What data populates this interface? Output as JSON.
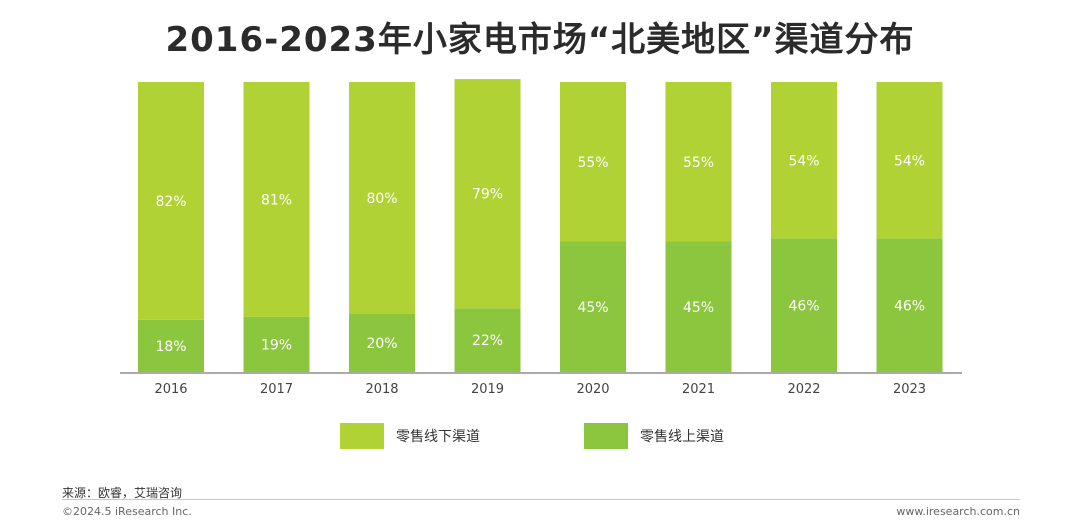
{
  "title": "2016-2023年小家电市场“北美地区”渠道分布",
  "chart_data": {
    "type": "bar",
    "stacked": true,
    "categories": [
      "2016",
      "2017",
      "2018",
      "2019",
      "2020",
      "2021",
      "2022",
      "2023"
    ],
    "series": [
      {
        "name": "零售线上渠道",
        "values": [
          18,
          19,
          20,
          22,
          45,
          45,
          46,
          46
        ],
        "labels": [
          "18%",
          "19%",
          "20%",
          "22%",
          "45%",
          "45%",
          "46%",
          "46%"
        ],
        "color": "#8cc63f"
      },
      {
        "name": "零售线下渠道",
        "values": [
          82,
          81,
          80,
          79,
          55,
          55,
          54,
          54
        ],
        "labels": [
          "82%",
          "81%",
          "80%",
          "79%",
          "55%",
          "55%",
          "54%",
          "54%"
        ],
        "color": "#b0d235"
      }
    ],
    "ylim": [
      0,
      100
    ],
    "grid": false,
    "legend_position": "bottom"
  },
  "legend": [
    {
      "label": "零售线下渠道",
      "color": "#b0d235"
    },
    {
      "label": "零售线上渠道",
      "color": "#8cc63f"
    }
  ],
  "source": "来源：欧睿，艾瑞咨询",
  "copyright": "©2024.5 iResearch Inc.",
  "website": "www.iresearch.com.cn"
}
